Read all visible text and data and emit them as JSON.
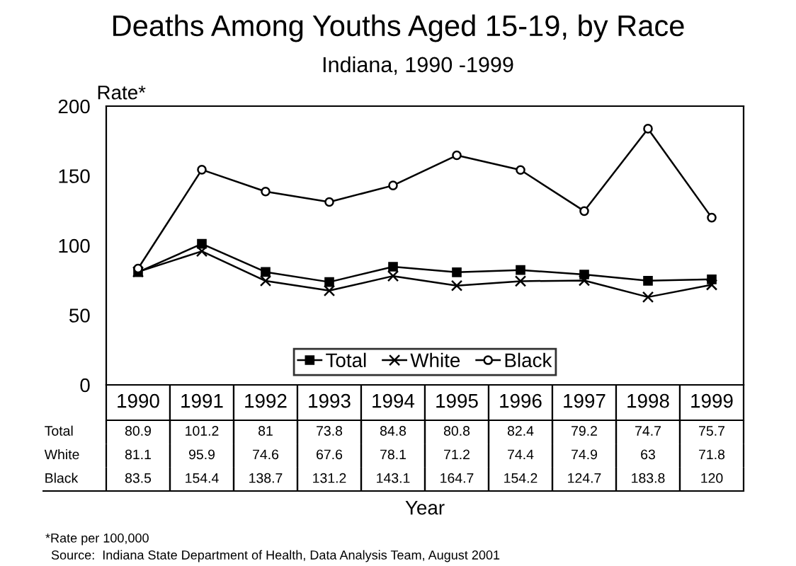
{
  "chart_data": {
    "type": "line",
    "title": "Deaths Among Youths Aged 15-19, by Race",
    "subtitle": "Indiana, 1990 -1999",
    "xlabel": "Year",
    "ylabel": "Rate*",
    "categories": [
      "1990",
      "1991",
      "1992",
      "1993",
      "1994",
      "1995",
      "1996",
      "1997",
      "1998",
      "1999"
    ],
    "series": [
      {
        "name": "Total",
        "color": "#000000",
        "marker": "square",
        "values": [
          80.9,
          101.2,
          81,
          73.8,
          84.8,
          80.8,
          82.4,
          79.2,
          74.7,
          75.7
        ]
      },
      {
        "name": "White",
        "color": "#000000",
        "marker": "cross",
        "values": [
          81.1,
          95.9,
          74.6,
          67.6,
          78.1,
          71.2,
          74.4,
          74.9,
          63,
          71.8
        ]
      },
      {
        "name": "Black",
        "color": "#000000",
        "marker": "circle",
        "values": [
          83.5,
          154.4,
          138.7,
          131.2,
          143.1,
          164.7,
          154.2,
          124.7,
          183.8,
          120
        ]
      }
    ],
    "ylim": [
      0,
      200
    ],
    "yticks": [
      0,
      50,
      100,
      150,
      200
    ],
    "grid": false,
    "legend": "bottom",
    "data_labels": true,
    "line_style": "solid",
    "annotations": [
      "*Rate per 100,000",
      "Source:  Indiana State Department of Health, Data Analysis Team, August 2001"
    ]
  }
}
